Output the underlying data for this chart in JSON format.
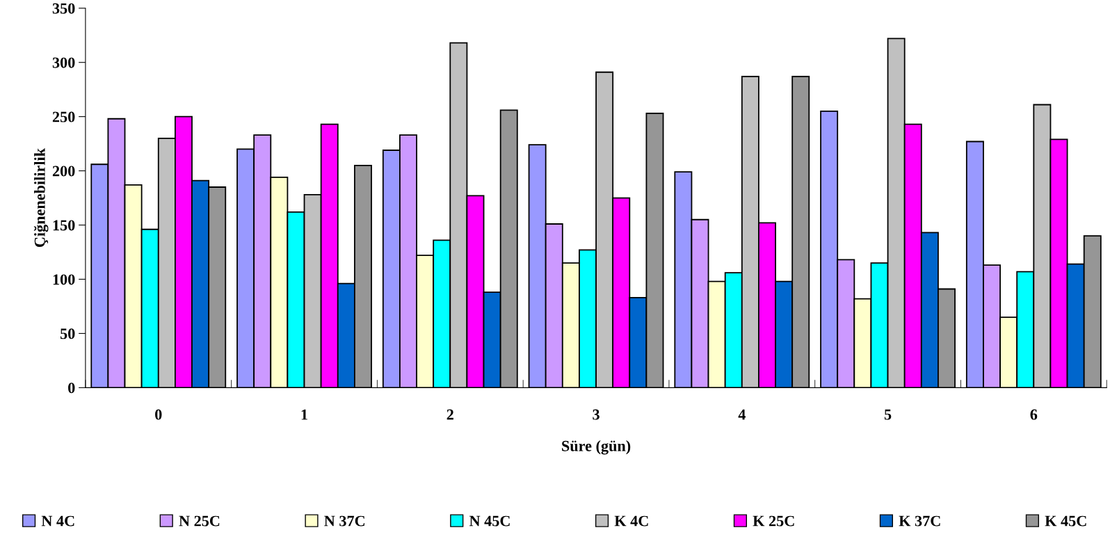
{
  "chart_data": {
    "type": "bar",
    "xlabel": "Süre (gün)",
    "ylabel": "Çiğnenebilirlik",
    "categories": [
      "0",
      "1",
      "2",
      "3",
      "4",
      "5",
      "6"
    ],
    "series": [
      {
        "name": "N 4C",
        "color": "#9999ff",
        "values": [
          206,
          220,
          219,
          224,
          199,
          255,
          227
        ]
      },
      {
        "name": "N 25C",
        "color": "#cc99ff",
        "values": [
          248,
          233,
          233,
          151,
          155,
          118,
          113
        ]
      },
      {
        "name": "N 37C",
        "color": "#ffffcc",
        "values": [
          187,
          194,
          122,
          115,
          98,
          82,
          65
        ]
      },
      {
        "name": "N 45C",
        "color": "#00ffff",
        "values": [
          146,
          162,
          136,
          127,
          106,
          115,
          107
        ]
      },
      {
        "name": "K 4C",
        "color": "#c0c0c0",
        "values": [
          230,
          178,
          318,
          291,
          287,
          322,
          261
        ]
      },
      {
        "name": "K 25C",
        "color": "#ff00ff",
        "values": [
          250,
          243,
          177,
          175,
          152,
          243,
          229
        ]
      },
      {
        "name": "K 37C",
        "color": "#0066cc",
        "values": [
          191,
          96,
          88,
          83,
          98,
          143,
          114
        ]
      },
      {
        "name": "K 45C",
        "color": "#969696",
        "values": [
          185,
          205,
          256,
          253,
          287,
          91,
          140
        ]
      }
    ],
    "ylim": [
      0,
      350
    ],
    "yticks": [
      0,
      50,
      100,
      150,
      200,
      250,
      300,
      350
    ],
    "grid": false,
    "legend": "bottom"
  }
}
